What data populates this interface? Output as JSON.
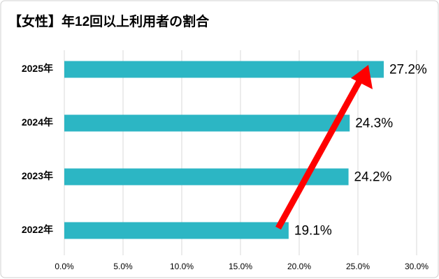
{
  "chart_data": {
    "type": "hbar",
    "title": "【女性】年12回以上利用者の割合",
    "categories": [
      "2025年",
      "2024年",
      "2023年",
      "2022年"
    ],
    "values": [
      27.2,
      24.3,
      24.2,
      19.1
    ],
    "value_labels": [
      "27.2%",
      "24.3%",
      "24.2%",
      "19.1%"
    ],
    "color": "#2cb6c4",
    "xlim": [
      0,
      30
    ],
    "xticks": [
      {
        "value": 0,
        "label": "0.0%"
      },
      {
        "value": 5,
        "label": "5.0%"
      },
      {
        "value": 10,
        "label": "10.0%"
      },
      {
        "value": 15,
        "label": "15.0%"
      },
      {
        "value": 20,
        "label": "20.0%"
      },
      {
        "value": 25,
        "label": "25.0%"
      },
      {
        "value": 30,
        "label": "30.0%"
      }
    ],
    "grid": true
  }
}
